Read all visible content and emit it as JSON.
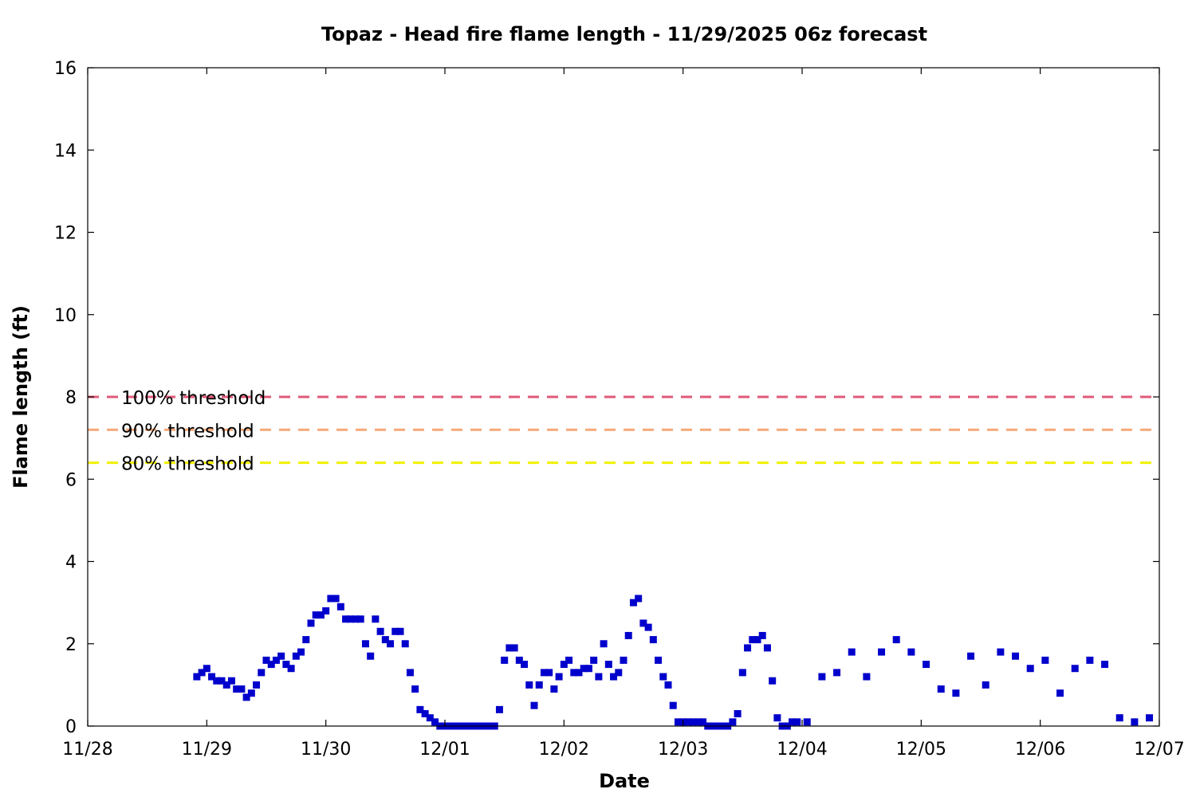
{
  "chart_data": {
    "type": "scatter",
    "title": "Topaz - Head fire flame length - 11/29/2025 06z forecast",
    "xlabel": "Date",
    "ylabel": "Flame length (ft)",
    "xlim": [
      "2025-11-28 00:00",
      "2025-12-07 00:00"
    ],
    "ylim": [
      0,
      16
    ],
    "x_ticks": [
      "11/28",
      "11/29",
      "11/30",
      "12/01",
      "12/02",
      "12/03",
      "12/04",
      "12/05",
      "12/06",
      "12/07"
    ],
    "y_ticks": [
      "0",
      "2",
      "4",
      "6",
      "8",
      "10",
      "12",
      "14",
      "16"
    ],
    "grid": false,
    "thresholds": [
      {
        "name": "100% threshold",
        "value": 8.0,
        "color": "#e05a78"
      },
      {
        "name": "90% threshold",
        "value": 7.2,
        "color": "#f5a878"
      },
      {
        "name": "80% threshold",
        "value": 6.4,
        "color": "#f0f000"
      }
    ],
    "marker_color": "#0000cc",
    "series": [
      {
        "points": [
          [
            "2025-11-28 22:00",
            1.2
          ],
          [
            "2025-11-28 23:00",
            1.3
          ],
          [
            "2025-11-29 00:00",
            1.4
          ],
          [
            "2025-11-29 01:00",
            1.2
          ],
          [
            "2025-11-29 02:00",
            1.1
          ],
          [
            "2025-11-29 03:00",
            1.1
          ],
          [
            "2025-11-29 04:00",
            1.0
          ],
          [
            "2025-11-29 05:00",
            1.1
          ],
          [
            "2025-11-29 06:00",
            0.9
          ],
          [
            "2025-11-29 07:00",
            0.9
          ],
          [
            "2025-11-29 08:00",
            0.7
          ],
          [
            "2025-11-29 09:00",
            0.8
          ],
          [
            "2025-11-29 10:00",
            1.0
          ],
          [
            "2025-11-29 11:00",
            1.3
          ],
          [
            "2025-11-29 12:00",
            1.6
          ],
          [
            "2025-11-29 13:00",
            1.5
          ],
          [
            "2025-11-29 14:00",
            1.6
          ],
          [
            "2025-11-29 15:00",
            1.7
          ],
          [
            "2025-11-29 16:00",
            1.5
          ],
          [
            "2025-11-29 17:00",
            1.4
          ],
          [
            "2025-11-29 18:00",
            1.7
          ],
          [
            "2025-11-29 19:00",
            1.8
          ],
          [
            "2025-11-29 20:00",
            2.1
          ],
          [
            "2025-11-29 21:00",
            2.5
          ],
          [
            "2025-11-29 22:00",
            2.7
          ],
          [
            "2025-11-29 23:00",
            2.7
          ],
          [
            "2025-11-30 00:00",
            2.8
          ],
          [
            "2025-11-30 01:00",
            3.1
          ],
          [
            "2025-11-30 02:00",
            3.1
          ],
          [
            "2025-11-30 03:00",
            2.9
          ],
          [
            "2025-11-30 04:00",
            2.6
          ],
          [
            "2025-11-30 05:00",
            2.6
          ],
          [
            "2025-11-30 06:00",
            2.6
          ],
          [
            "2025-11-30 07:00",
            2.6
          ],
          [
            "2025-11-30 08:00",
            2.0
          ],
          [
            "2025-11-30 09:00",
            1.7
          ],
          [
            "2025-11-30 10:00",
            2.6
          ],
          [
            "2025-11-30 11:00",
            2.3
          ],
          [
            "2025-11-30 12:00",
            2.1
          ],
          [
            "2025-11-30 13:00",
            2.0
          ],
          [
            "2025-11-30 14:00",
            2.3
          ],
          [
            "2025-11-30 15:00",
            2.3
          ],
          [
            "2025-11-30 16:00",
            2.0
          ],
          [
            "2025-11-30 17:00",
            1.3
          ],
          [
            "2025-11-30 18:00",
            0.9
          ],
          [
            "2025-11-30 19:00",
            0.4
          ],
          [
            "2025-11-30 20:00",
            0.3
          ],
          [
            "2025-11-30 21:00",
            0.2
          ],
          [
            "2025-11-30 22:00",
            0.1
          ],
          [
            "2025-11-30 23:00",
            0.0
          ],
          [
            "2025-12-01 00:00",
            0.0
          ],
          [
            "2025-12-01 01:00",
            0.0
          ],
          [
            "2025-12-01 02:00",
            0.0
          ],
          [
            "2025-12-01 03:00",
            0.0
          ],
          [
            "2025-12-01 04:00",
            0.0
          ],
          [
            "2025-12-01 05:00",
            0.0
          ],
          [
            "2025-12-01 06:00",
            0.0
          ],
          [
            "2025-12-01 07:00",
            0.0
          ],
          [
            "2025-12-01 08:00",
            0.0
          ],
          [
            "2025-12-01 09:00",
            0.0
          ],
          [
            "2025-12-01 10:00",
            0.0
          ],
          [
            "2025-12-01 11:00",
            0.4
          ],
          [
            "2025-12-01 12:00",
            1.6
          ],
          [
            "2025-12-01 13:00",
            1.9
          ],
          [
            "2025-12-01 14:00",
            1.9
          ],
          [
            "2025-12-01 15:00",
            1.6
          ],
          [
            "2025-12-01 16:00",
            1.5
          ],
          [
            "2025-12-01 17:00",
            1.0
          ],
          [
            "2025-12-01 18:00",
            0.5
          ],
          [
            "2025-12-01 19:00",
            1.0
          ],
          [
            "2025-12-01 20:00",
            1.3
          ],
          [
            "2025-12-01 21:00",
            1.3
          ],
          [
            "2025-12-01 22:00",
            0.9
          ],
          [
            "2025-12-01 23:00",
            1.2
          ],
          [
            "2025-12-02 00:00",
            1.5
          ],
          [
            "2025-12-02 01:00",
            1.6
          ],
          [
            "2025-12-02 02:00",
            1.3
          ],
          [
            "2025-12-02 03:00",
            1.3
          ],
          [
            "2025-12-02 04:00",
            1.4
          ],
          [
            "2025-12-02 05:00",
            1.4
          ],
          [
            "2025-12-02 06:00",
            1.6
          ],
          [
            "2025-12-02 07:00",
            1.2
          ],
          [
            "2025-12-02 08:00",
            2.0
          ],
          [
            "2025-12-02 09:00",
            1.5
          ],
          [
            "2025-12-02 10:00",
            1.2
          ],
          [
            "2025-12-02 11:00",
            1.3
          ],
          [
            "2025-12-02 12:00",
            1.6
          ],
          [
            "2025-12-02 13:00",
            2.2
          ],
          [
            "2025-12-02 14:00",
            3.0
          ],
          [
            "2025-12-02 15:00",
            3.1
          ],
          [
            "2025-12-02 16:00",
            2.5
          ],
          [
            "2025-12-02 17:00",
            2.4
          ],
          [
            "2025-12-02 18:00",
            2.1
          ],
          [
            "2025-12-02 19:00",
            1.6
          ],
          [
            "2025-12-02 20:00",
            1.2
          ],
          [
            "2025-12-02 21:00",
            1.0
          ],
          [
            "2025-12-02 22:00",
            0.5
          ],
          [
            "2025-12-02 23:00",
            0.1
          ],
          [
            "2025-12-03 00:00",
            0.1
          ],
          [
            "2025-12-03 01:00",
            0.1
          ],
          [
            "2025-12-03 02:00",
            0.1
          ],
          [
            "2025-12-03 03:00",
            0.1
          ],
          [
            "2025-12-03 04:00",
            0.1
          ],
          [
            "2025-12-03 05:00",
            0.0
          ],
          [
            "2025-12-03 06:00",
            0.0
          ],
          [
            "2025-12-03 07:00",
            0.0
          ],
          [
            "2025-12-03 08:00",
            0.0
          ],
          [
            "2025-12-03 09:00",
            0.0
          ],
          [
            "2025-12-03 10:00",
            0.1
          ],
          [
            "2025-12-03 11:00",
            0.3
          ],
          [
            "2025-12-03 12:00",
            1.3
          ],
          [
            "2025-12-03 13:00",
            1.9
          ],
          [
            "2025-12-03 14:00",
            2.1
          ],
          [
            "2025-12-03 15:00",
            2.1
          ],
          [
            "2025-12-03 16:00",
            2.2
          ],
          [
            "2025-12-03 17:00",
            1.9
          ],
          [
            "2025-12-03 18:00",
            1.1
          ],
          [
            "2025-12-03 19:00",
            0.2
          ],
          [
            "2025-12-03 20:00",
            0.0
          ],
          [
            "2025-12-03 21:00",
            0.0
          ],
          [
            "2025-12-03 22:00",
            0.1
          ],
          [
            "2025-12-03 23:00",
            0.1
          ],
          [
            "2025-12-04 01:00",
            0.1
          ],
          [
            "2025-12-04 04:00",
            1.2
          ],
          [
            "2025-12-04 07:00",
            1.3
          ],
          [
            "2025-12-04 10:00",
            1.8
          ],
          [
            "2025-12-04 13:00",
            1.2
          ],
          [
            "2025-12-04 16:00",
            1.8
          ],
          [
            "2025-12-04 19:00",
            2.1
          ],
          [
            "2025-12-04 22:00",
            1.8
          ],
          [
            "2025-12-05 01:00",
            1.5
          ],
          [
            "2025-12-05 04:00",
            0.9
          ],
          [
            "2025-12-05 07:00",
            0.8
          ],
          [
            "2025-12-05 10:00",
            1.7
          ],
          [
            "2025-12-05 13:00",
            1.0
          ],
          [
            "2025-12-05 16:00",
            1.8
          ],
          [
            "2025-12-05 19:00",
            1.7
          ],
          [
            "2025-12-05 22:00",
            1.4
          ],
          [
            "2025-12-06 01:00",
            1.6
          ],
          [
            "2025-12-06 04:00",
            0.8
          ],
          [
            "2025-12-06 07:00",
            1.4
          ],
          [
            "2025-12-06 10:00",
            1.6
          ],
          [
            "2025-12-06 13:00",
            1.5
          ],
          [
            "2025-12-06 16:00",
            0.2
          ],
          [
            "2025-12-06 19:00",
            0.1
          ],
          [
            "2025-12-06 22:00",
            0.2
          ]
        ]
      }
    ]
  }
}
